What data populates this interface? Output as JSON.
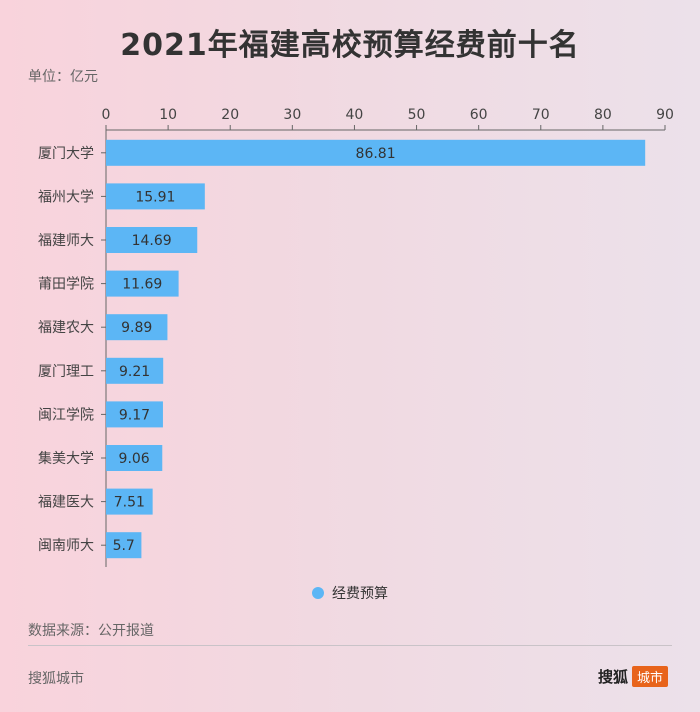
{
  "header": {
    "title": "2021年福建高校预算经费前十名",
    "unit": "单位：亿元"
  },
  "chart_data": {
    "type": "bar",
    "orientation": "horizontal",
    "title": "2021年福建高校预算经费前十名",
    "xlabel": "",
    "ylabel": "",
    "unit": "单位：亿元",
    "xlim": [
      0,
      90
    ],
    "ticks": [
      0,
      10,
      20,
      30,
      40,
      50,
      60,
      70,
      80,
      90
    ],
    "grid": false,
    "legend_position": "bottom",
    "categories": [
      "厦门大学",
      "福州大学",
      "福建师大",
      "莆田学院",
      "福建农大",
      "厦门理工",
      "闽江学院",
      "集美大学",
      "福建医大",
      "闽南师大"
    ],
    "series": [
      {
        "name": "经费预算",
        "color": "#5cb6f5",
        "values": [
          86.81,
          15.91,
          14.69,
          11.69,
          9.89,
          9.21,
          9.17,
          9.06,
          7.51,
          5.7
        ],
        "labels": [
          "86.81",
          "15.91",
          "14.69",
          "11.69",
          "9.89",
          "9.21",
          "9.17",
          "9.06",
          "7.51",
          "5.7"
        ]
      }
    ]
  },
  "legend": {
    "label": "经费预算",
    "color": "#5cb6f5"
  },
  "source": "数据来源：公开报道",
  "footer": {
    "left": "搜狐城市",
    "brand_main": "搜狐",
    "brand_tag": "城市"
  }
}
